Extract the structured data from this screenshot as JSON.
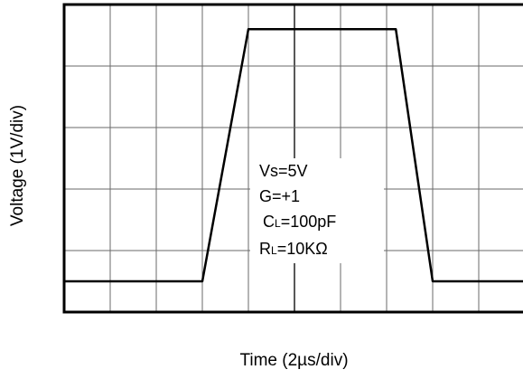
{
  "chart_data": {
    "type": "line",
    "title": "",
    "xlabel": "Time (2µs/div)",
    "ylabel": "Voltage (1V/div)",
    "x_divisions": 10,
    "y_divisions": 5,
    "grid": true,
    "x": [
      0,
      3.0,
      4.0,
      7.2,
      8.0,
      10.0
    ],
    "series": [
      {
        "values": [
          0.5,
          0.5,
          4.6,
          4.6,
          0.5,
          0.5
        ]
      }
    ],
    "annotations": [
      {
        "main": "Vs=5V",
        "sub": "",
        "tail": ""
      },
      {
        "main": "G=+1",
        "sub": "",
        "tail": ""
      },
      {
        "main": "C",
        "sub": "L",
        "tail": "=100pF"
      },
      {
        "main": "R",
        "sub": "L",
        "tail": "=10KΩ"
      }
    ]
  }
}
